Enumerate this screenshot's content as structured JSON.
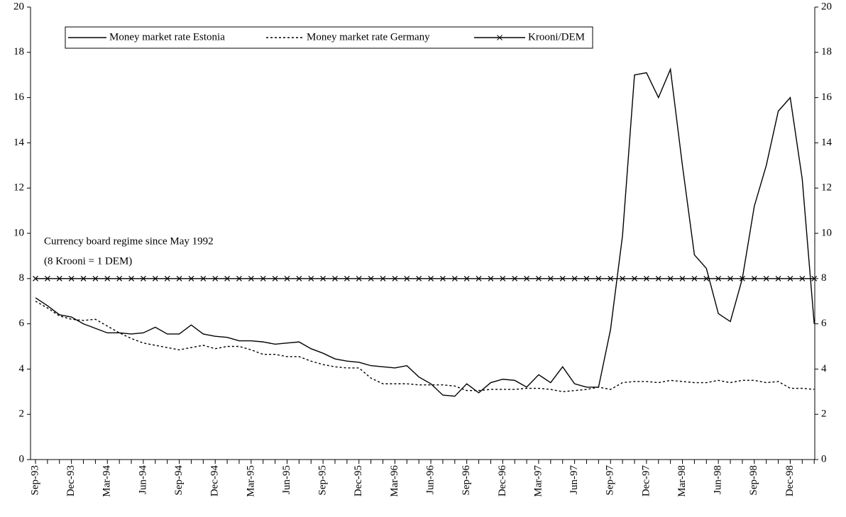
{
  "chart_data": {
    "type": "line",
    "categories": [
      "Sep-93",
      null,
      null,
      "Dec-93",
      null,
      null,
      "Mar-94",
      null,
      null,
      "Jun-94",
      null,
      null,
      "Sep-94",
      null,
      null,
      "Dec-94",
      null,
      null,
      "Mar-95",
      null,
      null,
      "Jun-95",
      null,
      null,
      "Sep-95",
      null,
      null,
      "Dec-95",
      null,
      null,
      "Mar-96",
      null,
      null,
      "Jun-96",
      null,
      null,
      "Sep-96",
      null,
      null,
      "Dec-96",
      null,
      null,
      "Mar-97",
      null,
      null,
      "Jun-97",
      null,
      null,
      "Sep-97",
      null,
      null,
      "Dec-97",
      null,
      null,
      "Mar-98",
      null,
      null,
      "Jun-98",
      null,
      null,
      "Sep-98",
      null,
      null,
      "Dec-98",
      null,
      null
    ],
    "series": [
      {
        "name": "Money market rate Estonia",
        "color": "#000000",
        "line_style": "solid",
        "marker": "none",
        "values": [
          7.15,
          6.8,
          6.4,
          6.3,
          6.0,
          5.8,
          5.6,
          5.6,
          5.55,
          5.6,
          5.85,
          5.55,
          5.55,
          5.95,
          5.55,
          5.45,
          5.4,
          5.25,
          5.25,
          5.2,
          5.1,
          5.15,
          5.2,
          4.9,
          4.7,
          4.45,
          4.35,
          4.3,
          4.15,
          4.1,
          4.05,
          4.15,
          3.65,
          3.35,
          2.85,
          2.8,
          3.35,
          2.95,
          3.4,
          3.55,
          3.5,
          3.2,
          3.75,
          3.4,
          4.1,
          3.35,
          3.2,
          3.2,
          5.75,
          9.9,
          17.0,
          17.1,
          16.0,
          17.25,
          13.0,
          9.05,
          8.45,
          6.45,
          6.1,
          8.0,
          11.2,
          13.0,
          15.4,
          16.0,
          12.4,
          6.0
        ]
      },
      {
        "name": "Money market rate Germany",
        "color": "#000000",
        "line_style": "dotted",
        "marker": "none",
        "values": [
          7.0,
          6.7,
          6.35,
          6.2,
          6.15,
          6.2,
          5.9,
          5.6,
          5.35,
          5.15,
          5.05,
          4.95,
          4.85,
          4.95,
          5.05,
          4.9,
          5.0,
          5.0,
          4.85,
          4.65,
          4.65,
          4.55,
          4.55,
          4.35,
          4.2,
          4.1,
          4.05,
          4.05,
          3.6,
          3.35,
          3.35,
          3.35,
          3.3,
          3.3,
          3.3,
          3.25,
          3.05,
          3.05,
          3.1,
          3.1,
          3.1,
          3.15,
          3.15,
          3.1,
          3.0,
          3.05,
          3.1,
          3.2,
          3.1,
          3.4,
          3.45,
          3.45,
          3.4,
          3.5,
          3.45,
          3.4,
          3.4,
          3.5,
          3.4,
          3.5,
          3.5,
          3.4,
          3.45,
          3.15,
          3.15,
          3.1
        ]
      },
      {
        "name": "Krooni/DEM",
        "color": "#000000",
        "line_style": "solid",
        "marker": "x",
        "values": [
          8,
          8,
          8,
          8,
          8,
          8,
          8,
          8,
          8,
          8,
          8,
          8,
          8,
          8,
          8,
          8,
          8,
          8,
          8,
          8,
          8,
          8,
          8,
          8,
          8,
          8,
          8,
          8,
          8,
          8,
          8,
          8,
          8,
          8,
          8,
          8,
          8,
          8,
          8,
          8,
          8,
          8,
          8,
          8,
          8,
          8,
          8,
          8,
          8,
          8,
          8,
          8,
          8,
          8,
          8,
          8,
          8,
          8,
          8,
          8,
          8,
          8,
          8,
          8,
          8,
          8
        ]
      }
    ],
    "annotations": [
      "Currency board regime since May 1992",
      "(8 Krooni = 1 DEM)"
    ],
    "ylim": [
      0,
      20
    ],
    "yticks": [
      0,
      2,
      4,
      6,
      8,
      10,
      12,
      14,
      16,
      18,
      20
    ],
    "y2lim": [
      0,
      20
    ],
    "y2ticks": [
      0,
      2,
      4,
      6,
      8,
      10,
      12,
      14,
      16,
      18,
      20
    ],
    "grid": false,
    "legend": "top-left"
  }
}
